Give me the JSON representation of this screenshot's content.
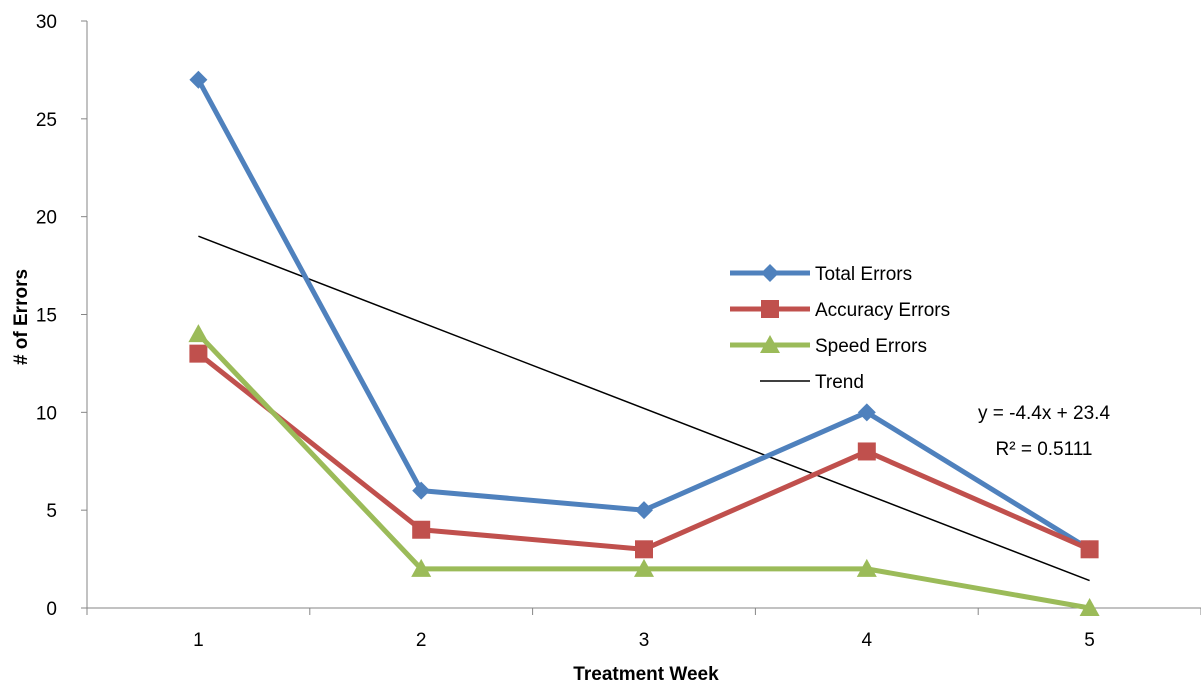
{
  "chart_data": {
    "type": "line",
    "title": "",
    "xlabel": "Treatment Week",
    "ylabel": "# of Errors",
    "categories": [
      "1",
      "2",
      "3",
      "4",
      "5"
    ],
    "x": [
      1,
      2,
      3,
      4,
      5
    ],
    "ylim": [
      0,
      30
    ],
    "y_ticks": [
      "0",
      "5",
      "10",
      "15",
      "20",
      "25",
      "30"
    ],
    "grid": false,
    "legend_position": "right-center",
    "series": [
      {
        "name": "Total Errors",
        "values": [
          27,
          6,
          5,
          10,
          3
        ],
        "color": "#4F81BD",
        "marker": "diamond"
      },
      {
        "name": "Accuracy Errors",
        "values": [
          13,
          4,
          3,
          8,
          3
        ],
        "color": "#C0504D",
        "marker": "square"
      },
      {
        "name": "Speed Errors",
        "values": [
          14,
          2,
          2,
          2,
          0
        ],
        "color": "#9BBB59",
        "marker": "triangle"
      }
    ],
    "trendline": {
      "name": "Trend",
      "slope": -4.4,
      "intercept": 23.4,
      "color": "#000000",
      "equation": "y = -4.4x + 23.4",
      "r_squared": "R² = 0.5111"
    }
  }
}
